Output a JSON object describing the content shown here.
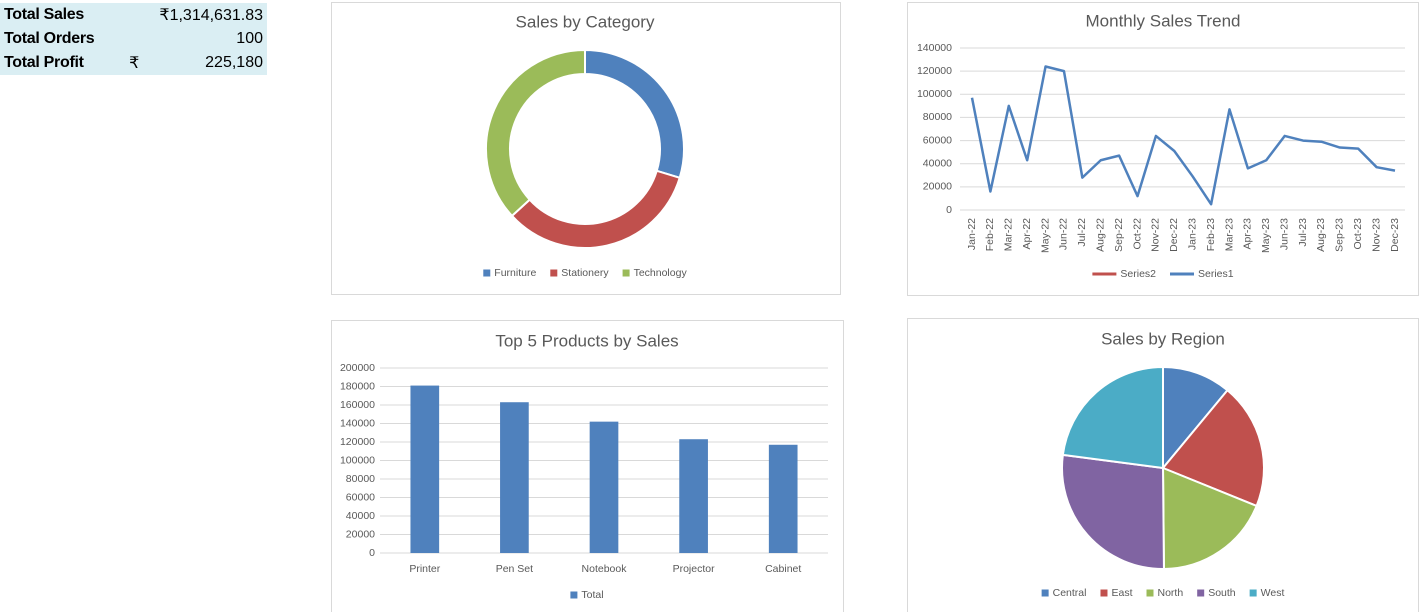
{
  "kpis": [
    {
      "label": "Total Sales",
      "value": "₹1,314,631.83"
    },
    {
      "label": "Total Orders",
      "value": "100"
    },
    {
      "label": "Total Profit",
      "currency": "₹",
      "value": "225,180"
    }
  ],
  "chart_data": [
    {
      "type": "doughnut",
      "title": "Sales by Category",
      "categories": [
        "Furniture",
        "Stationery",
        "Technology"
      ],
      "values": [
        29.7,
        33.5,
        36.8
      ],
      "colors": [
        "#4f81bd",
        "#c0504d",
        "#9bbb59"
      ],
      "legend": "bottom"
    },
    {
      "type": "line",
      "title": "Monthly Sales Trend",
      "categories": [
        "Jan-22",
        "Feb-22",
        "Mar-22",
        "Apr-22",
        "May-22",
        "Jun-22",
        "Jul-22",
        "Aug-22",
        "Sep-22",
        "Oct-22",
        "Nov-22",
        "Dec-22",
        "Jan-23",
        "Feb-23",
        "Mar-23",
        "Apr-23",
        "May-23",
        "Jun-23",
        "Jul-23",
        "Aug-23",
        "Sep-23",
        "Oct-23",
        "Nov-23",
        "Dec-23"
      ],
      "series": [
        {
          "name": "Series2",
          "color": "#c0504d",
          "values": [
            null,
            null,
            null,
            null,
            null,
            null,
            null,
            null,
            null,
            null,
            null,
            null,
            null,
            null,
            null,
            null,
            null,
            null,
            null,
            null,
            null,
            null,
            null,
            null
          ]
        },
        {
          "name": "Series1",
          "color": "#4f81bd",
          "values": [
            97000,
            16000,
            90000,
            43000,
            124000,
            120000,
            28000,
            43000,
            47000,
            12000,
            64000,
            51000,
            29000,
            5000,
            87000,
            36000,
            43000,
            64000,
            60000,
            59000,
            54000,
            53000,
            37000,
            34000
          ]
        }
      ],
      "ylim": [
        0,
        140000
      ],
      "yticks": [
        0,
        20000,
        40000,
        60000,
        80000,
        100000,
        120000,
        140000
      ],
      "grid": true,
      "legend": "bottom"
    },
    {
      "type": "bar",
      "title": "Top 5 Products by Sales",
      "categories": [
        "Printer",
        "Pen Set",
        "Notebook",
        "Projector",
        "Cabinet"
      ],
      "series": [
        {
          "name": "Total",
          "color": "#4f81bd",
          "values": [
            181000,
            163000,
            142000,
            123000,
            117000
          ]
        }
      ],
      "ylim": [
        0,
        200000
      ],
      "yticks": [
        0,
        20000,
        40000,
        60000,
        80000,
        100000,
        120000,
        140000,
        160000,
        180000,
        200000
      ],
      "grid": true,
      "legend": "bottom"
    },
    {
      "type": "pie",
      "title": "Sales by Region",
      "categories": [
        "Central",
        "East",
        "North",
        "South",
        "West"
      ],
      "values": [
        11,
        20.1,
        18.7,
        27.2,
        22.9
      ],
      "colors": [
        "#4f81bd",
        "#c0504d",
        "#9bbb59",
        "#8064a2",
        "#4bacc6"
      ],
      "legend": "bottom"
    }
  ]
}
